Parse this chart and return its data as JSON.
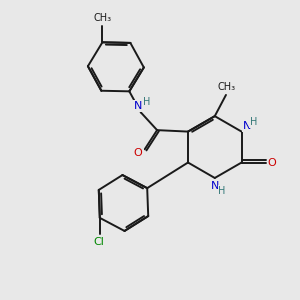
{
  "bg_color": "#e8e8e8",
  "bond_color": "#1a1a1a",
  "N_color": "#0000cc",
  "O_color": "#cc0000",
  "Cl_color": "#008800",
  "H_color": "#337777",
  "lw": 1.4,
  "figsize": [
    3.0,
    3.0
  ],
  "dpi": 100,
  "xlim": [
    0,
    10
  ],
  "ylim": [
    0,
    10
  ],
  "fs": 7.5
}
